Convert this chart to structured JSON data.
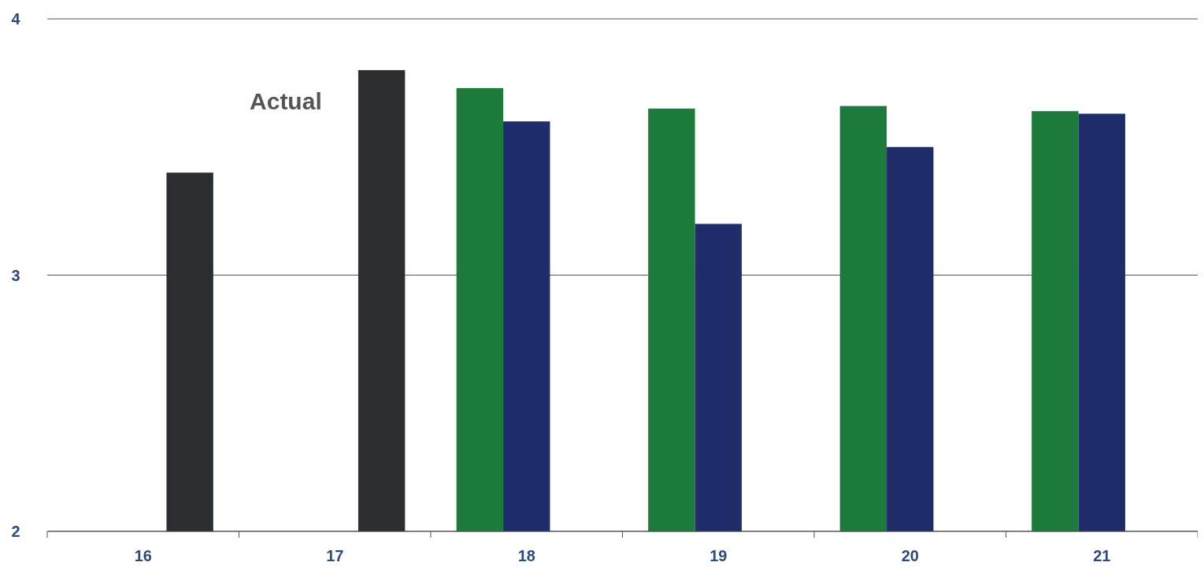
{
  "chart_data": {
    "type": "bar",
    "categories": [
      "16",
      "17",
      "18",
      "19",
      "20",
      "21"
    ],
    "series": [
      {
        "color": "#1e7a3c",
        "values": [
          null,
          null,
          3.73,
          3.65,
          3.66,
          3.64
        ]
      },
      {
        "color": "#1f2d6b",
        "values": [
          null,
          null,
          3.6,
          3.2,
          3.5,
          3.63
        ]
      },
      {
        "name": "Actual",
        "color": "#2b2d30",
        "values": [
          3.4,
          3.8,
          null,
          null,
          null,
          null
        ]
      }
    ],
    "ylim": [
      2,
      4
    ],
    "yticks": [
      2,
      3,
      4
    ],
    "grid": "y"
  }
}
